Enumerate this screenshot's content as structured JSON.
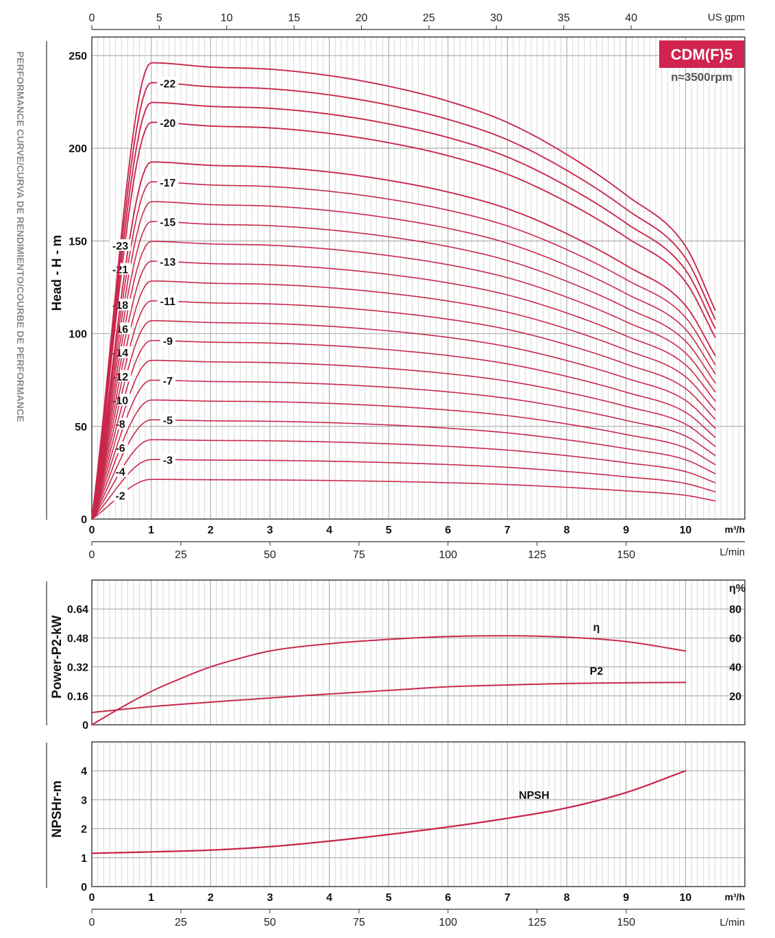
{
  "side_title": "PERFORMANCE CURVE/CURVA DE RENDIMIENTO/COURBE DE PERFORMANCE",
  "badge": {
    "model": "CDM(F)5",
    "speed": "n≈3500rpm",
    "color": "#d0234f"
  },
  "colors": {
    "curve": "#c8274b",
    "grid_major": "#a8a8a8",
    "grid_minor": "#cfcfcf",
    "frame": "#333333"
  },
  "axes": {
    "top_x": {
      "unit": "US gpm",
      "ticks": [
        "0",
        "5",
        "10",
        "15",
        "20",
        "25",
        "30",
        "35",
        "40"
      ],
      "values": [
        0,
        5,
        10,
        15,
        20,
        25,
        30,
        35,
        40
      ]
    },
    "m3h": {
      "unit": "m³/h",
      "ticks": [
        "0",
        "1",
        "2",
        "3",
        "4",
        "5",
        "6",
        "7",
        "8",
        "9",
        "10"
      ],
      "values": [
        0,
        1,
        2,
        3,
        4,
        5,
        6,
        7,
        8,
        9,
        10
      ],
      "range": [
        0,
        11
      ]
    },
    "lmin": {
      "unit": "L/min",
      "ticks": [
        "0",
        "25",
        "50",
        "75",
        "100",
        "125",
        "150"
      ],
      "values": [
        0,
        25,
        50,
        75,
        100,
        125,
        150
      ]
    }
  },
  "chart_data": [
    {
      "type": "line",
      "panel": "head",
      "ylabel": "Head - H - m",
      "xlim": [
        0,
        11
      ],
      "ylim": [
        0,
        260
      ],
      "yticks": [
        "0",
        "50",
        "100",
        "150",
        "200",
        "250"
      ],
      "ytick_values": [
        0,
        50,
        100,
        150,
        200,
        250
      ],
      "x_unit": "m³/h",
      "stage_head_m": [
        0,
        10.7,
        10.6,
        10.55,
        10.4,
        10.15,
        9.8,
        9.3,
        8.55,
        7.6,
        6.4,
        4.9
      ],
      "stage_flow_m3h": [
        0,
        1,
        2,
        3,
        4,
        5,
        6,
        7,
        8,
        9,
        10,
        10.5
      ],
      "stages": [
        2,
        3,
        4,
        5,
        6,
        7,
        8,
        9,
        10,
        11,
        12,
        13,
        14,
        15,
        16,
        17,
        18,
        20,
        21,
        22,
        23
      ],
      "labeled_stages": [
        "-2",
        "-3",
        "-4",
        "-5",
        "-6",
        "-7",
        "-8",
        "-9",
        "-10",
        "-11",
        "-12",
        "-13",
        "-14",
        "-15",
        "-16",
        "-17",
        "-18",
        "-20",
        "-21",
        "-22",
        "-23"
      ],
      "label_stage_values": [
        2,
        3,
        4,
        5,
        6,
        7,
        8,
        9,
        10,
        11,
        12,
        13,
        14,
        15,
        16,
        17,
        18,
        20,
        21,
        22,
        23
      ]
    },
    {
      "type": "line",
      "panel": "power",
      "ylabel": "Power-P2-kW",
      "y2label": "η%",
      "xlim": [
        0,
        11
      ],
      "ylim": [
        0,
        0.8
      ],
      "yticks": [
        "0",
        "0.16",
        "0.32",
        "0.48",
        "0.64"
      ],
      "ytick_values": [
        0,
        0.16,
        0.32,
        0.48,
        0.64
      ],
      "y2ticks": [
        "20",
        "40",
        "60",
        "80"
      ],
      "y2tick_values": [
        20,
        40,
        60,
        80
      ],
      "y2lim": [
        0,
        100
      ],
      "series": [
        {
          "name": "η",
          "axis": "right",
          "x": [
            0,
            0.5,
            1,
            1.5,
            2,
            2.5,
            3,
            4,
            5,
            6,
            7,
            8,
            9,
            10
          ],
          "y": [
            0,
            12,
            23,
            32,
            40,
            46,
            51,
            56,
            59,
            61,
            61.5,
            60.5,
            57.5,
            51
          ]
        },
        {
          "name": "P2",
          "axis": "left",
          "x": [
            0,
            1,
            2,
            3,
            4,
            5,
            6,
            7,
            8,
            9,
            10
          ],
          "y": [
            0.068,
            0.1,
            0.125,
            0.148,
            0.17,
            0.19,
            0.21,
            0.22,
            0.228,
            0.232,
            0.234
          ]
        }
      ]
    },
    {
      "type": "line",
      "panel": "npsh",
      "ylabel": "NPSHr-m",
      "xlim": [
        0,
        11
      ],
      "ylim": [
        0,
        5
      ],
      "yticks": [
        "0",
        "1",
        "2",
        "3",
        "4"
      ],
      "ytick_values": [
        0,
        1,
        2,
        3,
        4
      ],
      "series": [
        {
          "name": "NPSH",
          "x": [
            0,
            1,
            2,
            3,
            4,
            5,
            6,
            7,
            8,
            9,
            10
          ],
          "y": [
            1.15,
            1.2,
            1.26,
            1.38,
            1.57,
            1.8,
            2.06,
            2.36,
            2.72,
            3.25,
            4.0
          ]
        }
      ]
    }
  ]
}
